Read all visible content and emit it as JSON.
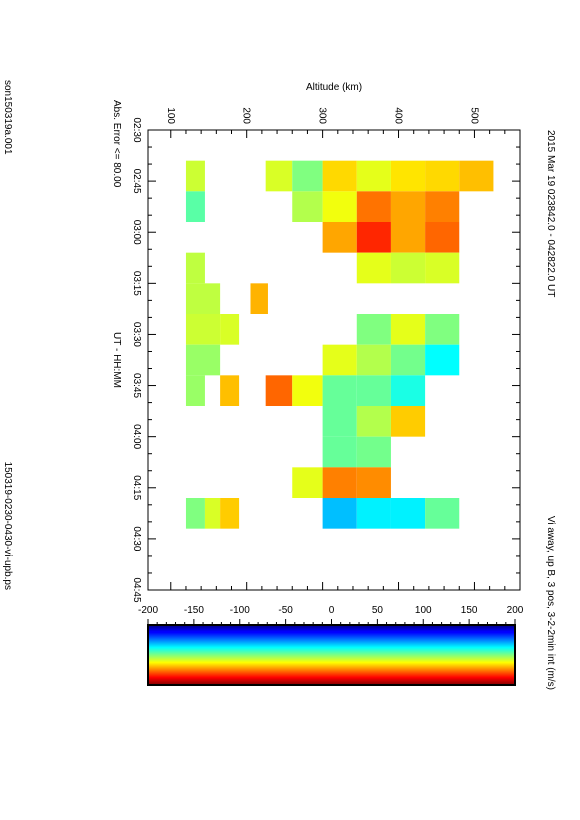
{
  "header": {
    "title": "2015 Mar 19    023842.0 - 042822.0 UT",
    "mode": "Vi away, up B, 3 pos, 3-2-2min int (m/s)"
  },
  "footer": {
    "left": "son150319a.001",
    "right": "150319-0230-0430-vi-upb.ps"
  },
  "chart_data": {
    "type": "heatmap",
    "orientation": "rotated 90 degrees clockwise (page in landscape)",
    "xlabel": "UT - HH:MM",
    "ylabel": "Altitude (km)",
    "annotation": "Abs. Error <= 80.00",
    "colorbar_label": "Vi away, up B, 3 pos, 3-2-2min int (m/s)",
    "x_ticks": [
      "02:30",
      "02:45",
      "03:00",
      "03:15",
      "03:30",
      "03:45",
      "04:00",
      "04:15",
      "04:30",
      "04:45"
    ],
    "y_ticks": [
      "100",
      "200",
      "300",
      "400",
      "500"
    ],
    "colorbar_ticks": [
      "-200",
      "-150",
      "-100",
      "-50",
      "0",
      "50",
      "100",
      "150",
      "200"
    ],
    "x_range_minutes": [
      150,
      285
    ],
    "y_range_km": [
      70,
      560
    ],
    "value_range": [
      -200,
      200
    ],
    "colormap": "jet",
    "cells": [
      {
        "t0": 159,
        "t1": 168,
        "z0": 120,
        "z1": 145,
        "v": 30
      },
      {
        "t0": 159,
        "t1": 168,
        "z0": 225,
        "z1": 260,
        "v": 35
      },
      {
        "t0": 159,
        "t1": 168,
        "z0": 260,
        "z1": 300,
        "v": 0
      },
      {
        "t0": 159,
        "t1": 168,
        "z0": 300,
        "z1": 345,
        "v": 65
      },
      {
        "t0": 159,
        "t1": 168,
        "z0": 345,
        "z1": 390,
        "v": 40
      },
      {
        "t0": 159,
        "t1": 168,
        "z0": 390,
        "z1": 435,
        "v": 60
      },
      {
        "t0": 159,
        "t1": 168,
        "z0": 435,
        "z1": 480,
        "v": 65
      },
      {
        "t0": 159,
        "t1": 168,
        "z0": 480,
        "z1": 525,
        "v": 75
      },
      {
        "t0": 168,
        "t1": 177,
        "z0": 120,
        "z1": 145,
        "v": -15
      },
      {
        "t0": 168,
        "t1": 177,
        "z0": 260,
        "z1": 300,
        "v": 20
      },
      {
        "t0": 168,
        "t1": 177,
        "z0": 300,
        "z1": 345,
        "v": 45
      },
      {
        "t0": 168,
        "t1": 177,
        "z0": 345,
        "z1": 390,
        "v": 105
      },
      {
        "t0": 168,
        "t1": 177,
        "z0": 390,
        "z1": 435,
        "v": 85
      },
      {
        "t0": 168,
        "t1": 177,
        "z0": 435,
        "z1": 480,
        "v": 100
      },
      {
        "t0": 177,
        "t1": 186,
        "z0": 300,
        "z1": 345,
        "v": 85
      },
      {
        "t0": 177,
        "t1": 186,
        "z0": 345,
        "z1": 390,
        "v": 135
      },
      {
        "t0": 177,
        "t1": 186,
        "z0": 390,
        "z1": 435,
        "v": 85
      },
      {
        "t0": 177,
        "t1": 186,
        "z0": 435,
        "z1": 480,
        "v": 110
      },
      {
        "t0": 186,
        "t1": 195,
        "z0": 120,
        "z1": 145,
        "v": 25
      },
      {
        "t0": 186,
        "t1": 195,
        "z0": 345,
        "z1": 390,
        "v": 40
      },
      {
        "t0": 186,
        "t1": 195,
        "z0": 390,
        "z1": 435,
        "v": 30
      },
      {
        "t0": 186,
        "t1": 195,
        "z0": 435,
        "z1": 480,
        "v": 35
      },
      {
        "t0": 195,
        "t1": 204,
        "z0": 120,
        "z1": 165,
        "v": 25
      },
      {
        "t0": 195,
        "t1": 204,
        "z0": 205,
        "z1": 228,
        "v": 80
      },
      {
        "t0": 204,
        "t1": 213,
        "z0": 120,
        "z1": 165,
        "v": 30
      },
      {
        "t0": 204,
        "t1": 213,
        "z0": 165,
        "z1": 190,
        "v": 35
      },
      {
        "t0": 204,
        "t1": 213,
        "z0": 345,
        "z1": 390,
        "v": 0
      },
      {
        "t0": 204,
        "t1": 213,
        "z0": 390,
        "z1": 435,
        "v": 40
      },
      {
        "t0": 204,
        "t1": 213,
        "z0": 435,
        "z1": 480,
        "v": 0
      },
      {
        "t0": 213,
        "t1": 222,
        "z0": 120,
        "z1": 165,
        "v": 10
      },
      {
        "t0": 213,
        "t1": 222,
        "z0": 300,
        "z1": 345,
        "v": 40
      },
      {
        "t0": 213,
        "t1": 222,
        "z0": 345,
        "z1": 390,
        "v": 20
      },
      {
        "t0": 213,
        "t1": 222,
        "z0": 390,
        "z1": 435,
        "v": -5
      },
      {
        "t0": 213,
        "t1": 222,
        "z0": 435,
        "z1": 480,
        "v": -50
      },
      {
        "t0": 222,
        "t1": 231,
        "z0": 120,
        "z1": 145,
        "v": 10
      },
      {
        "t0": 222,
        "t1": 231,
        "z0": 165,
        "z1": 190,
        "v": 75
      },
      {
        "t0": 222,
        "t1": 231,
        "z0": 225,
        "z1": 260,
        "v": 110
      },
      {
        "t0": 222,
        "t1": 231,
        "z0": 260,
        "z1": 300,
        "v": 45
      },
      {
        "t0": 222,
        "t1": 231,
        "z0": 300,
        "z1": 345,
        "v": -10
      },
      {
        "t0": 222,
        "t1": 231,
        "z0": 345,
        "z1": 390,
        "v": -10
      },
      {
        "t0": 222,
        "t1": 231,
        "z0": 390,
        "z1": 435,
        "v": -40
      },
      {
        "t0": 231,
        "t1": 240,
        "z0": 300,
        "z1": 345,
        "v": -10
      },
      {
        "t0": 231,
        "t1": 240,
        "z0": 345,
        "z1": 390,
        "v": 20
      },
      {
        "t0": 231,
        "t1": 240,
        "z0": 390,
        "z1": 435,
        "v": 70
      },
      {
        "t0": 240,
        "t1": 249,
        "z0": 300,
        "z1": 345,
        "v": -10
      },
      {
        "t0": 240,
        "t1": 249,
        "z0": 345,
        "z1": 390,
        "v": -5
      },
      {
        "t0": 249,
        "t1": 258,
        "z0": 260,
        "z1": 300,
        "v": 40
      },
      {
        "t0": 249,
        "t1": 258,
        "z0": 300,
        "z1": 345,
        "v": 100
      },
      {
        "t0": 249,
        "t1": 258,
        "z0": 345,
        "z1": 390,
        "v": 95
      },
      {
        "t0": 258,
        "t1": 267,
        "z0": 120,
        "z1": 145,
        "v": 0
      },
      {
        "t0": 258,
        "t1": 267,
        "z0": 145,
        "z1": 165,
        "v": 35
      },
      {
        "t0": 258,
        "t1": 267,
        "z0": 165,
        "z1": 190,
        "v": 70
      },
      {
        "t0": 258,
        "t1": 267,
        "z0": 300,
        "z1": 345,
        "v": -75
      },
      {
        "t0": 258,
        "t1": 267,
        "z0": 345,
        "z1": 390,
        "v": -55
      },
      {
        "t0": 258,
        "t1": 267,
        "z0": 390,
        "z1": 435,
        "v": -55
      },
      {
        "t0": 258,
        "t1": 267,
        "z0": 435,
        "z1": 480,
        "v": -10
      }
    ]
  }
}
